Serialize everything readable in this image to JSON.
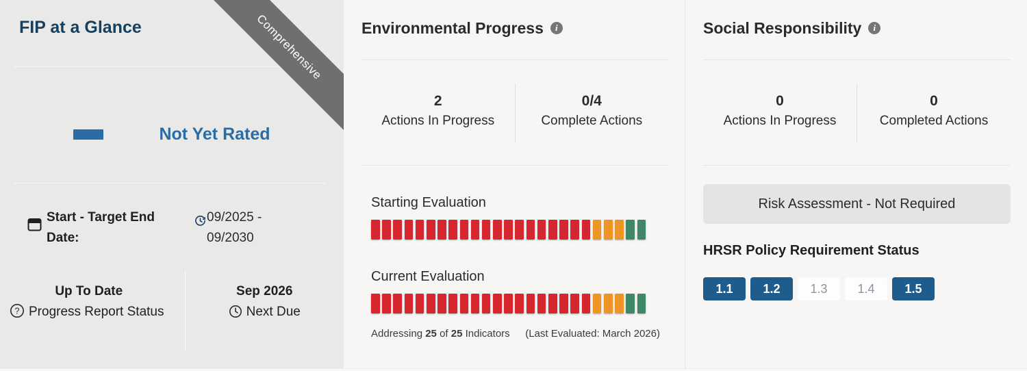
{
  "colors": {
    "red": "#d7272e",
    "orange": "#ee9527",
    "green": "#3f8766",
    "badge_blue": "#1f5c8b",
    "accent_blue": "#2a6ca5",
    "title_navy": "#16405f",
    "ribbon_gray": "#6f6f6f"
  },
  "fip": {
    "title": "FIP at a Glance",
    "ribbon_label": "Comprehensive",
    "rating": "Not Yet Rated",
    "date_label": "Start - Target End Date:",
    "date_value": "09/2025 - 09/2030",
    "report_status_value": "Up To Date",
    "report_status_label": "Progress Report Status",
    "next_due_value": "Sep 2026",
    "next_due_label": "Next Due"
  },
  "environmental": {
    "title": "Environmental Progress",
    "stats": [
      {
        "value": "2",
        "label": "Actions In Progress"
      },
      {
        "value": "0/4",
        "label": "Complete Actions"
      }
    ],
    "evaluations": [
      {
        "name": "Starting Evaluation",
        "segments": [
          {
            "status": "red",
            "count": 20
          },
          {
            "status": "orange",
            "count": 3
          },
          {
            "status": "green",
            "count": 2
          }
        ]
      },
      {
        "name": "Current Evaluation",
        "segments": [
          {
            "status": "red",
            "count": 20
          },
          {
            "status": "orange",
            "count": 3
          },
          {
            "status": "green",
            "count": 2
          }
        ]
      }
    ],
    "footer": {
      "addressing": "Addressing",
      "count": "25",
      "of": "of",
      "total": "25",
      "indicators": "Indicators",
      "last_evaluated": "(Last Evaluated: March 2026)"
    }
  },
  "social": {
    "title": "Social Responsibility",
    "stats": [
      {
        "value": "0",
        "label": "Actions In Progress"
      },
      {
        "value": "0",
        "label": "Completed Actions"
      }
    ],
    "risk_assessment": "Risk Assessment - Not Required",
    "hrsr_title": "HRSR Policy Requirement Status",
    "badges": [
      {
        "label": "1.1",
        "active": true
      },
      {
        "label": "1.2",
        "active": true
      },
      {
        "label": "1.3",
        "active": false
      },
      {
        "label": "1.4",
        "active": false
      },
      {
        "label": "1.5",
        "active": true
      }
    ]
  }
}
